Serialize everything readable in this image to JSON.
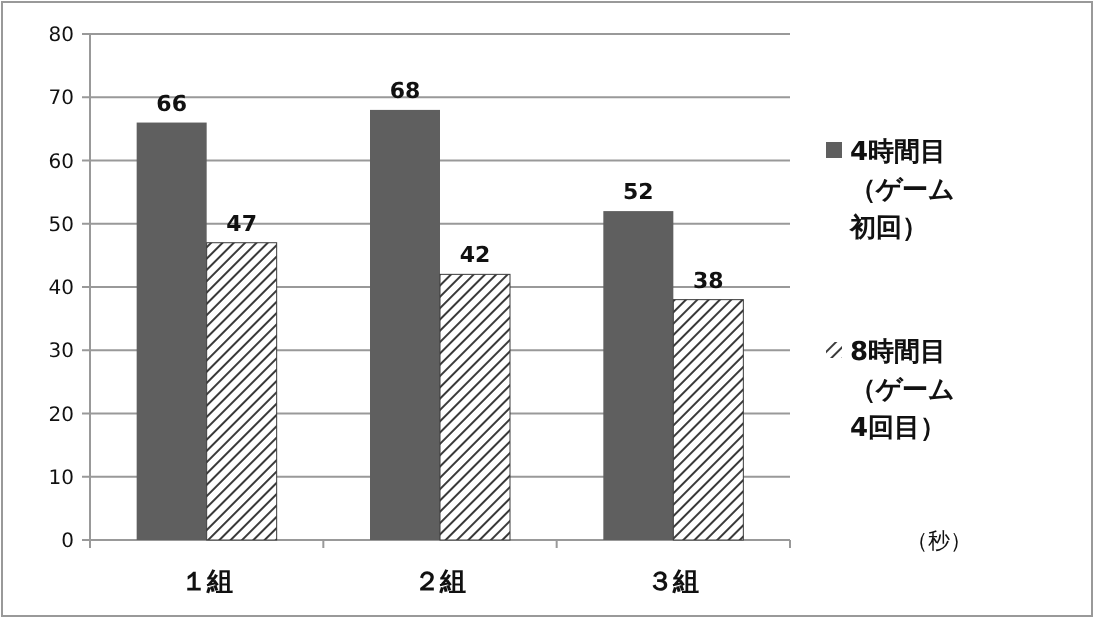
{
  "chart_data": {
    "type": "bar",
    "categories": [
      "１組",
      "２組",
      "３組"
    ],
    "series": [
      {
        "name": "4時間目（ゲーム初回）",
        "color": "#5f5f5f",
        "values": [
          66,
          68,
          52
        ]
      },
      {
        "name": "8時間目（ゲーム4回目）",
        "color": "#3a3a3a",
        "values": [
          47,
          42,
          38
        ]
      }
    ],
    "ylim": [
      0,
      80
    ],
    "yticks": [
      0,
      10,
      20,
      30,
      40,
      50,
      60,
      70,
      80
    ],
    "grid": "y",
    "legend": "right",
    "data_labels": true,
    "annotations": [
      "（秒）"
    ]
  }
}
